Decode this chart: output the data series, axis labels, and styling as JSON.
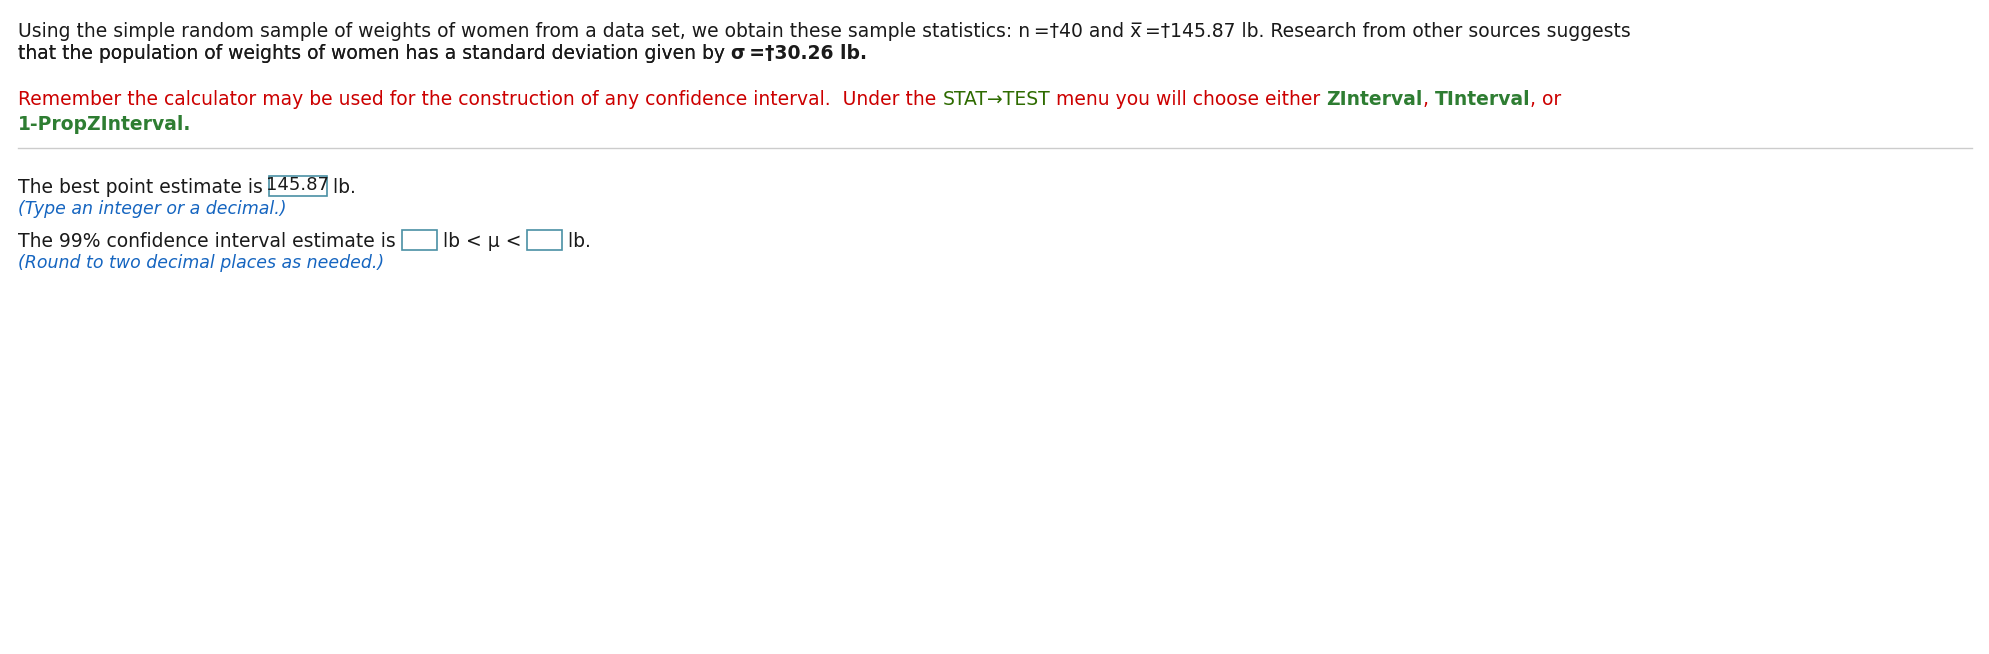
{
  "bg_color": "#ffffff",
  "line1": "Using the simple random sample of weights of women from a data set, we obtain these sample statistics: n = 40 and x̅ = 145.87 lb. Research from other sources suggests",
  "line2": "that the population of weights of women has a standard deviation given by σ =†30.26 lb.",
  "sigma_bold_part": "σ =†30.26",
  "red_line1": "Remember the calculator may be used for the construction of any confidence interval.  Under the STAT→TEST menu you will choose either ZInterval, TInterval, or",
  "red_line2": "1-PropZInterval.",
  "stat_test_words": "STAT→TEST",
  "green_words": [
    "ZInterval",
    "TInterval",
    "1-PropZInterval"
  ],
  "body_line1a": "The best point estimate is ",
  "body_box1": "145.87",
  "body_line1b": " lb.",
  "body_hint1": "(Type an integer or a decimal.)",
  "body_line2a": "The 99% confidence interval estimate is ",
  "body_line2b": " lb < μ < ",
  "body_line2c": " lb.",
  "body_hint2": "(Round to two decimal places as needed.)",
  "text_color_black": "#1a1a1a",
  "text_color_red": "#cc0000",
  "text_color_green": "#2e7d32",
  "text_color_blue": "#1565c0",
  "text_color_darkgreen": "#2e6b00",
  "box_border_color": "#4a90a4",
  "separator_color": "#cccccc",
  "font_size_main": 13.5,
  "font_size_hint": 12.5
}
